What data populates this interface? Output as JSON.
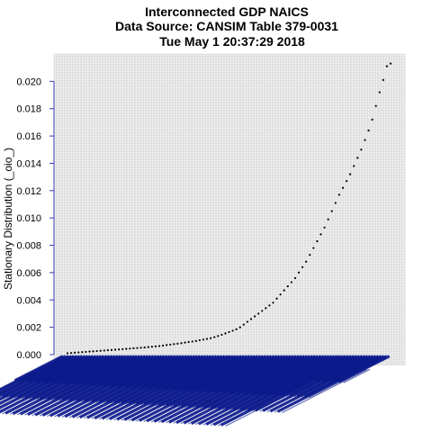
{
  "chart_data": {
    "type": "scatter",
    "title_lines": [
      "Interconnected GDP NAICS",
      "Data Source: CANSIM Table 379-0031",
      "Tue May  1 20:37:29 2018"
    ],
    "xlabel": "",
    "ylabel": "Stationary Distribution (_oio_)",
    "ylim": [
      0,
      0.022
    ],
    "y_ticks": [
      "0.000",
      "0.002",
      "0.004",
      "0.006",
      "0.008",
      "0.010",
      "0.012",
      "0.014",
      "0.016",
      "0.018",
      "0.020"
    ],
    "grid": true,
    "sorted_ascending": true,
    "values": [
      0.0001,
      0.00012,
      0.00014,
      0.00016,
      0.00018,
      0.0002,
      0.00022,
      0.00024,
      0.00026,
      0.00028,
      0.0003,
      0.00032,
      0.00034,
      0.00036,
      0.00038,
      0.0004,
      0.00042,
      0.00044,
      0.00046,
      0.00048,
      0.0005,
      0.00052,
      0.00055,
      0.00058,
      0.0006,
      0.00063,
      0.00066,
      0.0007,
      0.00073,
      0.00077,
      0.0008,
      0.00084,
      0.00088,
      0.00092,
      0.00096,
      0.001,
      0.00105,
      0.0011,
      0.00115,
      0.0012,
      0.00128,
      0.00136,
      0.00145,
      0.00155,
      0.00165,
      0.00175,
      0.00185,
      0.002,
      0.0022,
      0.0024,
      0.0026,
      0.0028,
      0.003,
      0.0032,
      0.0034,
      0.0036,
      0.0038,
      0.0041,
      0.0044,
      0.0047,
      0.005,
      0.0053,
      0.0056,
      0.006,
      0.0064,
      0.0068,
      0.0073,
      0.0078,
      0.0083,
      0.0088,
      0.0093,
      0.0099,
      0.0105,
      0.0111,
      0.0117,
      0.0122,
      0.0127,
      0.0132,
      0.0138,
      0.0144,
      0.015,
      0.0157,
      0.0164,
      0.0172,
      0.0182,
      0.0192,
      0.0201,
      0.0211,
      0.0213
    ],
    "label_color": "#0b1a8c",
    "marker_color": "#000000",
    "grid_color": "#c8c8c8"
  }
}
